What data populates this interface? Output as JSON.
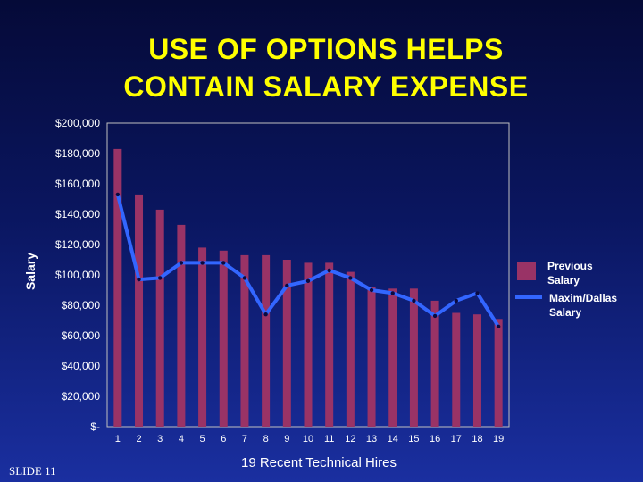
{
  "slide": {
    "title_line1": "USE OF OPTIONS HELPS",
    "title_line2": "CONTAIN SALARY EXPENSE",
    "slide_number": "SLIDE 11"
  },
  "chart_data": {
    "type": "bar",
    "categories": [
      "1",
      "2",
      "3",
      "4",
      "5",
      "6",
      "7",
      "8",
      "9",
      "10",
      "11",
      "12",
      "13",
      "14",
      "15",
      "16",
      "17",
      "18",
      "19"
    ],
    "series": [
      {
        "name": "Previous Salary",
        "type": "bar",
        "color": "#993366",
        "values": [
          183000,
          153000,
          143000,
          133000,
          118000,
          116000,
          113000,
          113000,
          110000,
          108000,
          108000,
          102000,
          92000,
          91000,
          91000,
          83000,
          75000,
          74000,
          71000
        ]
      },
      {
        "name": "Maxim/Dallas Salary",
        "type": "line",
        "color": "#3366ff",
        "values": [
          153000,
          97000,
          98000,
          108000,
          108000,
          108000,
          98000,
          74000,
          93000,
          96000,
          103000,
          98000,
          90000,
          88000,
          83000,
          73000,
          83000,
          88000,
          66000
        ]
      }
    ],
    "legend_labels": [
      [
        "Previous",
        "Salary"
      ],
      [
        "Maxim/Dallas",
        "Salary"
      ]
    ],
    "xlabel": "19 Recent Technical Hires",
    "ylabel": "Salary",
    "ylim": [
      0,
      200000
    ],
    "y_ticks": [
      0,
      20000,
      40000,
      60000,
      80000,
      100000,
      120000,
      140000,
      160000,
      180000,
      200000
    ],
    "y_tick_labels": [
      "$-",
      "$20,000",
      "$40,000",
      "$60,000",
      "$80,000",
      "$100,000",
      "$120,000",
      "$140,000",
      "$160,000",
      "$180,000",
      "$200,000"
    ],
    "grid": false,
    "legend_position": "right"
  }
}
